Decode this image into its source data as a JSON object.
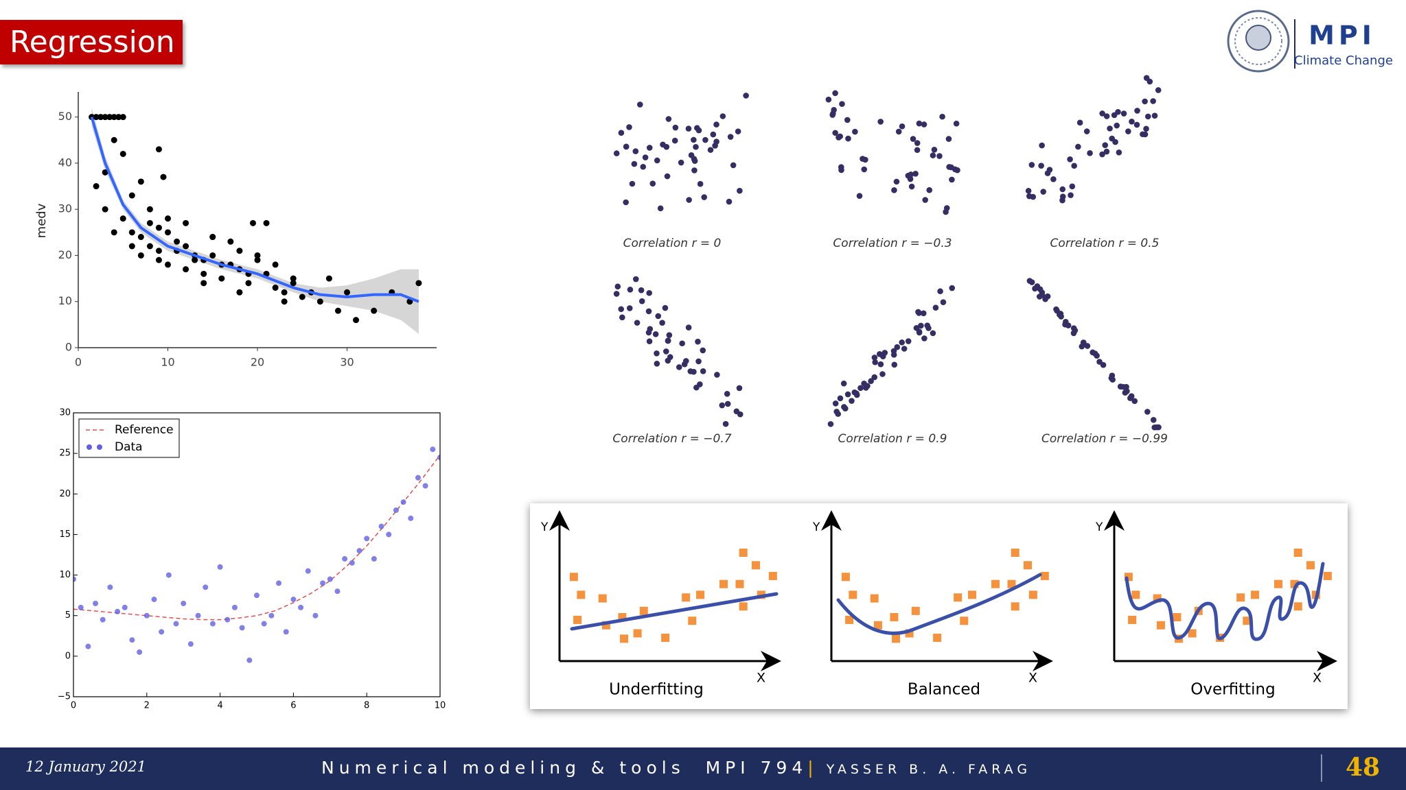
{
  "header": {
    "title": "Regression"
  },
  "logo": {
    "name": "MPI",
    "subtitle": "Climate Change"
  },
  "chart_data": [
    {
      "type": "scatter",
      "ylabel": "medv",
      "color": "#000000",
      "x": [
        1.5,
        2,
        2.5,
        3,
        3.5,
        4,
        4.5,
        5,
        2,
        3,
        4,
        5,
        6,
        7,
        8,
        9,
        10,
        3,
        4,
        5,
        6,
        7,
        8,
        9,
        10,
        11,
        12,
        13,
        14,
        15,
        16,
        6,
        7,
        8,
        9,
        10,
        11,
        12,
        13,
        14,
        15,
        16,
        17,
        18,
        19,
        20,
        21,
        22,
        23,
        24,
        25,
        26,
        17,
        18,
        19,
        20,
        22,
        24,
        27,
        29,
        30,
        31,
        33,
        35,
        37,
        38,
        9,
        9.5,
        12,
        15,
        19.5,
        21,
        14,
        18,
        23,
        28
      ],
      "values": [
        50,
        50,
        50,
        50,
        50,
        50,
        50,
        50,
        35,
        38,
        45,
        42,
        33,
        36,
        30,
        26,
        28,
        30,
        25,
        28,
        22,
        24,
        27,
        21,
        25,
        23,
        22,
        20,
        19,
        24,
        18,
        25,
        20,
        22,
        19,
        18,
        21,
        17,
        19,
        16,
        20,
        15,
        18,
        17,
        14,
        19,
        16,
        13,
        12,
        15,
        11,
        12,
        23,
        21,
        16,
        20,
        18,
        14,
        10,
        8,
        12,
        6,
        8,
        12,
        10,
        14,
        43,
        37,
        27,
        24,
        27,
        27,
        14,
        12,
        10,
        15
      ],
      "smooth": {
        "color": "#3366ff",
        "band_color": "#cccccc",
        "x": [
          1.5,
          3,
          5,
          7,
          10,
          13,
          16,
          20,
          24,
          27,
          30,
          33,
          36,
          38
        ],
        "values": [
          50,
          40,
          31,
          26,
          22,
          20,
          18,
          16,
          13,
          11.5,
          11,
          11.5,
          11.5,
          10
        ],
        "lower": [
          48,
          38.5,
          30,
          25,
          21,
          19,
          17,
          15,
          12,
          10,
          9,
          8,
          6,
          3
        ],
        "upper": [
          52,
          41.5,
          32,
          27,
          23,
          21,
          19,
          17,
          14,
          13,
          13.5,
          15,
          17,
          17
        ]
      },
      "xlim": [
        0,
        40
      ],
      "ylim": [
        0,
        55
      ],
      "xticks": [
        0,
        10,
        20,
        30
      ],
      "yticks": [
        0,
        10,
        20,
        30,
        40,
        50
      ]
    },
    {
      "type": "scatter",
      "legend": "upper left",
      "series": [
        {
          "name": "Reference",
          "color": "#e05050",
          "style": "dashed",
          "x": [
            0,
            0.5,
            1,
            1.5,
            2,
            2.5,
            3,
            3.5,
            4,
            4.5,
            5,
            5.5,
            6,
            6.5,
            7,
            7.5,
            8,
            8.5,
            9,
            9.5,
            10
          ],
          "values": [
            5.8,
            5.6,
            5.4,
            5.2,
            5.0,
            4.8,
            4.6,
            4.5,
            4.5,
            4.7,
            5.0,
            5.6,
            6.6,
            7.8,
            9.3,
            11.3,
            13.6,
            16.2,
            19.0,
            21.8,
            24.8
          ]
        },
        {
          "name": "Data",
          "color": "#6060e0",
          "x": [
            0,
            0.2,
            0.4,
            0.6,
            0.8,
            1,
            1.2,
            1.4,
            1.6,
            1.8,
            2,
            2.2,
            2.4,
            2.6,
            2.8,
            3,
            3.2,
            3.4,
            3.6,
            3.8,
            4,
            4.2,
            4.4,
            4.6,
            4.8,
            5,
            5.2,
            5.4,
            5.6,
            5.8,
            6,
            6.2,
            6.4,
            6.6,
            6.8,
            7,
            7.2,
            7.4,
            7.6,
            7.8,
            8,
            8.2,
            8.4,
            8.6,
            8.8,
            9,
            9.2,
            9.4,
            9.6,
            9.8,
            10
          ],
          "values": [
            9.5,
            6,
            1.2,
            6.5,
            4.5,
            8.5,
            5.5,
            6,
            2,
            0.5,
            5,
            7,
            3,
            10,
            4,
            6.5,
            1.5,
            5,
            8.5,
            4,
            11,
            4.5,
            6,
            3.5,
            -0.5,
            7.5,
            4,
            5,
            9,
            3,
            7,
            6,
            10.5,
            5,
            9,
            9.5,
            8,
            12,
            11.5,
            13,
            14.5,
            12,
            16,
            15,
            18,
            19,
            17,
            22,
            21,
            25.5,
            24.5
          ]
        }
      ],
      "xlim": [
        0,
        10
      ],
      "ylim": [
        -5,
        30
      ],
      "xticks": [
        0,
        2,
        4,
        6,
        8,
        10
      ],
      "yticks": [
        {
          "value": -5,
          "label": "−5"
        },
        0,
        5,
        10,
        15,
        20,
        25,
        30
      ]
    }
  ],
  "correlation_panels": [
    {
      "label": "Correlation r = 0"
    },
    {
      "label": "Correlation r = −0.3"
    },
    {
      "label": "Correlation r = 0.5"
    },
    {
      "label": "Correlation r = −0.7"
    },
    {
      "label": "Correlation r = 0.9"
    },
    {
      "label": "Correlation r = −0.99"
    }
  ],
  "fitting_panels": [
    {
      "label": "Underfitting",
      "y_axis": "Y",
      "x_axis": "X"
    },
    {
      "label": "Balanced",
      "y_axis": "Y",
      "x_axis": "X"
    },
    {
      "label": "Overfitting",
      "y_axis": "Y",
      "x_axis": "X"
    }
  ],
  "footer": {
    "date": "12 January 2021",
    "course": "Numerical modeling & tools  MPI 794",
    "separator": "|",
    "author": "YASSER B. A. FARAG",
    "page": 48
  }
}
